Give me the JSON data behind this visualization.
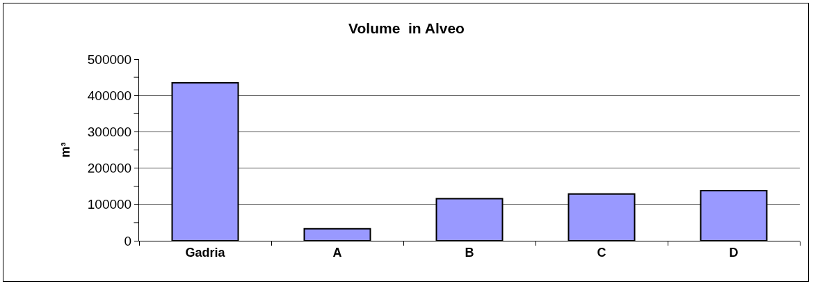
{
  "chart_data": {
    "type": "bar",
    "title": "Volume  in Alveo",
    "ylabel": "m³",
    "categories": [
      "Gadria",
      "A",
      "B",
      "C",
      "D"
    ],
    "values": [
      435000,
      33000,
      116000,
      129000,
      138000
    ],
    "color": "#9999ff",
    "ylim": [
      0,
      500000
    ],
    "yticks": [
      0,
      {
        "value": 50000,
        "label": null
      },
      100000,
      {
        "value": 150000,
        "label": null
      },
      200000,
      {
        "value": 250000,
        "label": null
      },
      300000,
      {
        "value": 350000,
        "label": null
      },
      400000,
      {
        "value": 450000,
        "label": null
      },
      500000
    ],
    "grid": "y",
    "legend": false
  }
}
